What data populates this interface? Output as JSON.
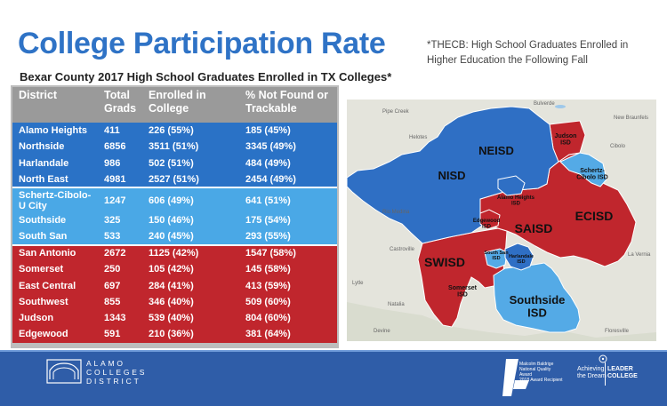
{
  "title": "College Participation Rate",
  "subtitle": "Bexar County 2017 High School Graduates Enrolled in TX Colleges*",
  "note": "*THECB: High School Graduates Enrolled in Higher Education the Following Fall",
  "table": {
    "headers": [
      "District",
      "Total Grads",
      "Enrolled in College",
      "% Not Found or Trackable"
    ],
    "rows": [
      {
        "district": "Alamo Heights",
        "total": "411",
        "enrolled": "226 (55%)",
        "not_found": "185 (45%)",
        "group": "blue"
      },
      {
        "district": "Northside",
        "total": "6856",
        "enrolled": "3511 (51%)",
        "not_found": "3345 (49%)",
        "group": "blue"
      },
      {
        "district": "Harlandale",
        "total": "986",
        "enrolled": "502 (51%)",
        "not_found": "484 (49%)",
        "group": "blue"
      },
      {
        "district": "North East",
        "total": "4981",
        "enrolled": "2527 (51%)",
        "not_found": "2454 (49%)",
        "group": "blue"
      },
      {
        "district": "Schertz-Cibolo-U City",
        "total": "1247",
        "enrolled": "606 (49%)",
        "not_found": "641 (51%)",
        "group": "light"
      },
      {
        "district": "Southside",
        "total": "325",
        "enrolled": "150 (46%)",
        "not_found": "175 (54%)",
        "group": "light"
      },
      {
        "district": "South San",
        "total": "533",
        "enrolled": "240 (45%)",
        "not_found": "293 (55%)",
        "group": "light"
      },
      {
        "district": "San Antonio",
        "total": "2672",
        "enrolled": "1125 (42%)",
        "not_found": "1547 (58%)",
        "group": "red"
      },
      {
        "district": "Somerset",
        "total": "250",
        "enrolled": "105 (42%)",
        "not_found": "145 (58%)",
        "group": "red"
      },
      {
        "district": "East Central",
        "total": "697",
        "enrolled": "284 (41%)",
        "not_found": "413 (59%)",
        "group": "red"
      },
      {
        "district": "Southwest",
        "total": "855",
        "enrolled": "346 (40%)",
        "not_found": "509 (60%)",
        "group": "red"
      },
      {
        "district": "Judson",
        "total": "1343",
        "enrolled": "539 (40%)",
        "not_found": "804 (60%)",
        "group": "red"
      },
      {
        "district": "Edgewood",
        "total": "591",
        "enrolled": "210 (36%)",
        "not_found": "381 (64%)",
        "group": "red"
      }
    ]
  },
  "map": {
    "district_labels": [
      "NEISD",
      "NISD",
      "Judson ISD",
      "Schertz-Cibolo ISD",
      "Alamo Heights ISD",
      "Edgewood ISD",
      "SAISD",
      "ECISD",
      "South San ISD",
      "Harlandale ISD",
      "SWISD",
      "Somerset ISD",
      "Southside ISD"
    ],
    "place_labels": [
      "Pipe Creek",
      "Helotes",
      "Bulverde",
      "New Braunfels",
      "Cibolo",
      "Rio Medina",
      "Castroville",
      "La Vernia",
      "Lytle",
      "Natalia",
      "Devine",
      "Floresville"
    ],
    "colors": {
      "top": "#2f6fc4",
      "middle": "#54aae6",
      "bottom": "#c0262d",
      "base": "#e4e4dc",
      "water": "#9ec8ea"
    }
  },
  "footer": {
    "logo_lines": [
      "ALAMO",
      "COLLEGES",
      "DISTRICT"
    ],
    "baldrige_lines": [
      "Malcolm Baldrige",
      "National Quality Award",
      "2018 Award Recipient"
    ],
    "atd_left": [
      "Achieving",
      "the Dream"
    ],
    "atd_right": [
      "LEADER",
      "COLLEGE"
    ]
  }
}
